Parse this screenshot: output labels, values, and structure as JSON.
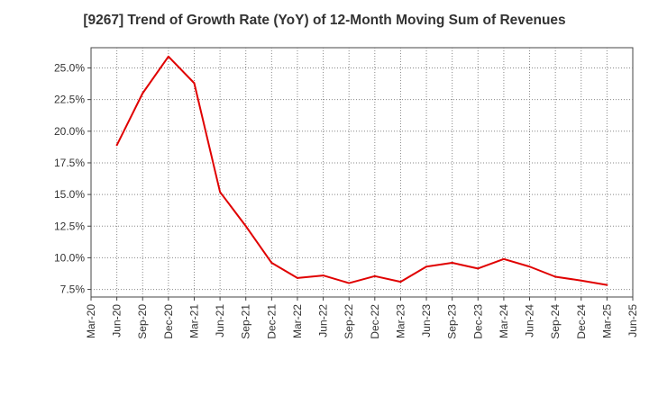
{
  "chart_data": {
    "type": "line",
    "title": "[9267]  Trend of Growth Rate (YoY) of 12-Month Moving Sum of Revenues",
    "xlabel": "",
    "ylabel": "",
    "x_tick_labels": [
      "Mar-20",
      "Jun-20",
      "Sep-20",
      "Dec-20",
      "Mar-21",
      "Jun-21",
      "Sep-21",
      "Dec-21",
      "Mar-22",
      "Jun-22",
      "Sep-22",
      "Dec-22",
      "Mar-23",
      "Jun-23",
      "Sep-23",
      "Dec-23",
      "Mar-24",
      "Jun-24",
      "Sep-24",
      "Dec-24",
      "Mar-25",
      "Jun-25"
    ],
    "y_tick_labels": [
      "7.5%",
      "10.0%",
      "12.5%",
      "15.0%",
      "17.5%",
      "20.0%",
      "22.5%",
      "25.0%"
    ],
    "y_ticks": [
      7.5,
      10.0,
      12.5,
      15.0,
      17.5,
      20.0,
      22.5,
      25.0
    ],
    "ylim": [
      6.9,
      26.6
    ],
    "grid": true,
    "series": [
      {
        "color": "#e00000",
        "x": [
          "Jun-20",
          "Sep-20",
          "Dec-20",
          "Mar-21",
          "Jun-21",
          "Sep-21",
          "Dec-21",
          "Mar-22",
          "Jun-22",
          "Sep-22",
          "Dec-22",
          "Mar-23",
          "Jun-23",
          "Sep-23",
          "Dec-23",
          "Mar-24",
          "Jun-24",
          "Sep-24",
          "Dec-24",
          "Mar-25"
        ],
        "values": [
          18.9,
          23.0,
          25.9,
          23.8,
          15.2,
          12.5,
          9.6,
          8.4,
          8.6,
          8.0,
          8.55,
          8.1,
          9.3,
          9.6,
          9.15,
          9.9,
          9.3,
          8.5,
          8.2,
          7.85
        ]
      }
    ]
  }
}
